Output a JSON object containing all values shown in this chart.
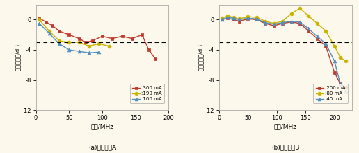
{
  "panel_a": {
    "title": "(a)器件样品A",
    "xlabel": "频率/MHz",
    "ylabel": "小信号功率/dB",
    "xlim": [
      0,
      200
    ],
    "ylim": [
      -12,
      2
    ],
    "yticks": [
      0,
      -4,
      -8,
      -12
    ],
    "xticks": [
      0,
      50,
      100,
      150,
      200
    ],
    "hline": -3,
    "series": [
      {
        "label": ":300 mA",
        "color": "#c0392b",
        "marker": "s",
        "x": [
          5,
          15,
          25,
          35,
          50,
          65,
          75,
          85,
          100,
          115,
          130,
          145,
          160,
          170,
          180
        ],
        "y": [
          0.2,
          -0.3,
          -0.8,
          -1.5,
          -2.0,
          -2.5,
          -3.0,
          -2.8,
          -2.2,
          -2.5,
          -2.2,
          -2.5,
          -2.0,
          -4.0,
          -5.2
        ]
      },
      {
        "label": ":190 mA",
        "color": "#c8b400",
        "marker": "o",
        "x": [
          5,
          20,
          35,
          50,
          65,
          80,
          95,
          110
        ],
        "y": [
          0.0,
          -1.5,
          -2.8,
          -3.0,
          -3.0,
          -3.5,
          -3.2,
          -3.5
        ]
      },
      {
        "label": ":100 mA",
        "color": "#4f8fbf",
        "marker": "^",
        "x": [
          5,
          20,
          35,
          50,
          65,
          80,
          95
        ],
        "y": [
          -0.5,
          -1.8,
          -3.2,
          -4.0,
          -4.2,
          -4.4,
          -4.3
        ]
      }
    ]
  },
  "panel_b": {
    "title": "(b)器件样品B",
    "xlabel": "频率/MHz",
    "ylabel": "小信号功率/dB",
    "xlim": [
      0,
      230
    ],
    "ylim": [
      -12,
      2
    ],
    "yticks": [
      0,
      -4,
      -8,
      -12
    ],
    "xticks": [
      0,
      50,
      100,
      150,
      200
    ],
    "hline": -3,
    "series": [
      {
        "label": ":200 mA",
        "color": "#c0392b",
        "marker": "s",
        "x": [
          5,
          15,
          25,
          35,
          50,
          65,
          80,
          95,
          110,
          125,
          140,
          155,
          170,
          185,
          200,
          210,
          220
        ],
        "y": [
          0.0,
          0.2,
          0.0,
          -0.2,
          0.1,
          0.0,
          -0.5,
          -0.8,
          -0.5,
          -0.3,
          -0.5,
          -1.5,
          -2.5,
          -3.5,
          -7.0,
          -8.5,
          -9.0
        ]
      },
      {
        "label": ":80 mA",
        "color": "#c8b400",
        "marker": "o",
        "x": [
          5,
          15,
          25,
          35,
          50,
          65,
          80,
          95,
          110,
          125,
          140,
          155,
          170,
          185,
          200,
          210,
          220
        ],
        "y": [
          0.2,
          0.5,
          0.3,
          0.1,
          0.4,
          0.3,
          -0.2,
          -0.5,
          -0.2,
          0.8,
          1.5,
          0.5,
          -0.5,
          -1.5,
          -3.5,
          -5.0,
          -5.5
        ]
      },
      {
        "label": ":40 mA",
        "color": "#4f8fbf",
        "marker": "^",
        "x": [
          5,
          15,
          25,
          35,
          50,
          65,
          80,
          95,
          110,
          125,
          140,
          155,
          170,
          185,
          200,
          210,
          220
        ],
        "y": [
          0.0,
          0.3,
          0.2,
          0.0,
          0.2,
          0.1,
          -0.4,
          -0.6,
          -0.4,
          -0.2,
          -0.3,
          -1.2,
          -2.2,
          -3.2,
          -5.5,
          -8.5,
          -9.5
        ]
      }
    ]
  },
  "background_color": "#fdf8ec",
  "fig_background": "#fdf8ec",
  "border_color": "#aaaaaa"
}
